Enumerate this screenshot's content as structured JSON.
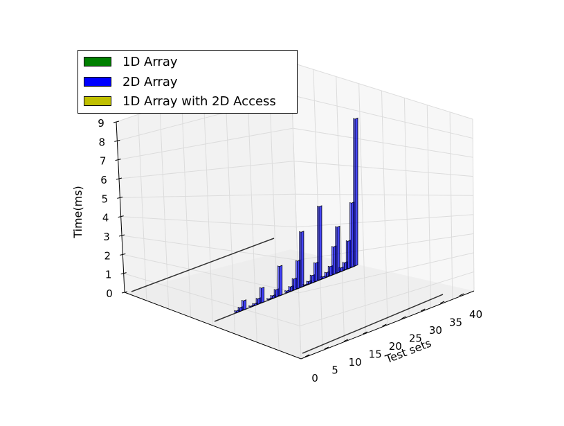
{
  "chart_data": {
    "type": "bar",
    "projection": "3d",
    "xlabel": "Test sets",
    "ylabel": "",
    "zlabel": "Time(ms)",
    "x_ticks": [
      "0",
      "5",
      "10",
      "15",
      "20",
      "25",
      "30",
      "35",
      "40"
    ],
    "z_ticks": [
      "0",
      "1",
      "2",
      "3",
      "4",
      "5",
      "6",
      "7",
      "8",
      "9"
    ],
    "xlim": [
      0,
      40
    ],
    "zlim": [
      0,
      9
    ],
    "grid": true,
    "legend_position": "top-left",
    "x": [
      0,
      1,
      2,
      3,
      4,
      5,
      6,
      7,
      8,
      9,
      10,
      11,
      12,
      13,
      14,
      15,
      16,
      17,
      18,
      19,
      20,
      21,
      22,
      23,
      24,
      25,
      26,
      27,
      28,
      29,
      30,
      31,
      32,
      33,
      34,
      35,
      36,
      37,
      38,
      39
    ],
    "series": [
      {
        "name": "1D Array",
        "color": "#008000",
        "values": [
          0,
          0,
          0,
          0,
          0,
          0,
          0,
          0,
          0,
          0,
          0,
          0,
          0,
          0,
          0,
          0,
          0,
          0,
          0,
          0,
          0,
          0,
          0,
          0,
          0,
          0,
          0,
          0,
          0,
          0,
          0,
          0,
          0,
          0,
          0,
          0,
          0,
          0,
          0,
          0
        ]
      },
      {
        "name": "2D Array",
        "color": "#0000ff",
        "values": [
          0.02,
          0.02,
          0.02,
          0.02,
          0.02,
          0.03,
          0.1,
          0.2,
          0.5,
          0.02,
          0.05,
          0.1,
          0.3,
          0.8,
          0.02,
          0.06,
          0.15,
          0.4,
          1.6,
          0.02,
          0.1,
          0.25,
          0.6,
          1.5,
          3.0,
          0.05,
          0.15,
          0.4,
          1.0,
          4.0,
          0.1,
          0.25,
          0.5,
          1.5,
          2.5,
          0.2,
          0.4,
          1.5,
          3.5,
          8.0
        ]
      },
      {
        "name": "1D Array with 2D Access",
        "color": "#bfbf00",
        "values": [
          0,
          0,
          0,
          0,
          0,
          0,
          0,
          0,
          0,
          0,
          0,
          0,
          0,
          0,
          0,
          0,
          0,
          0,
          0,
          0,
          0,
          0,
          0,
          0,
          0,
          0,
          0,
          0,
          0,
          0,
          0,
          0,
          0,
          0,
          0,
          0,
          0,
          0,
          0,
          0
        ]
      }
    ]
  }
}
